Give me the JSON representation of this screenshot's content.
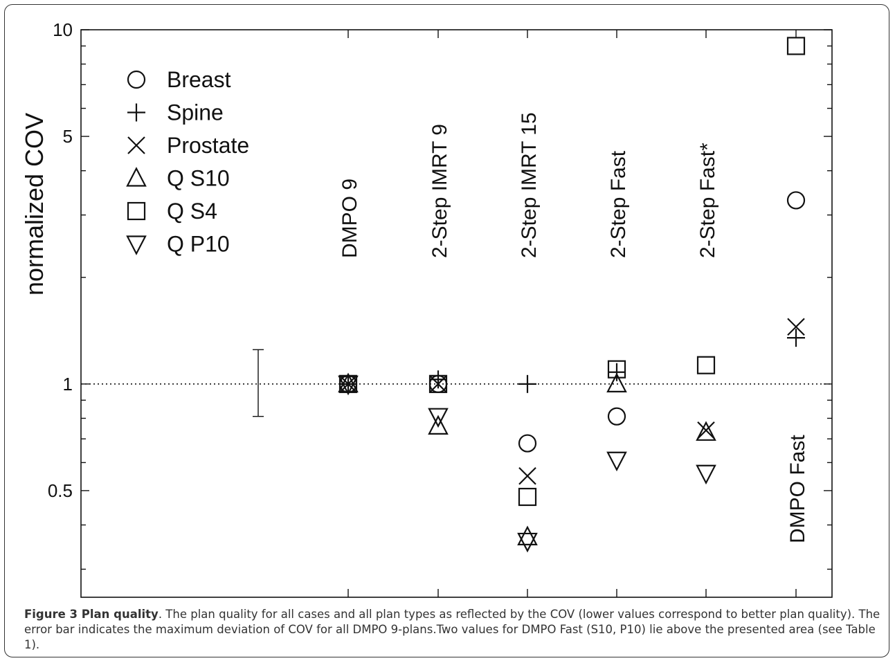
{
  "chart_data": {
    "type": "scatter",
    "title": "",
    "xlabel": "",
    "ylabel": "normalized COV",
    "yscale": "log",
    "ylim": [
      0.25,
      10
    ],
    "yticks_labeled": [
      {
        "value": 0.5,
        "label": "0.5"
      },
      {
        "value": 1,
        "label": "1"
      },
      {
        "value": 5,
        "label": "5"
      },
      {
        "value": 10,
        "label": "10"
      }
    ],
    "reference_line": {
      "y": 1,
      "style": "dotted"
    },
    "categories": [
      "DMPO 9",
      "2-Step IMRT 9",
      "2-Step IMRT 15",
      "2-Step Fast",
      "2-Step Fast*",
      "DMPO Fast"
    ],
    "category_label_position": [
      "top",
      "top",
      "top",
      "top",
      "top",
      "bottom"
    ],
    "legend": {
      "placement": "top-left",
      "entries": [
        {
          "marker": "circle",
          "label": "Breast"
        },
        {
          "marker": "plus",
          "label": "Spine"
        },
        {
          "marker": "cross",
          "label": "Prostate"
        },
        {
          "marker": "triangle-up",
          "label": "Q S10"
        },
        {
          "marker": "square",
          "label": "Q S4"
        },
        {
          "marker": "triangle-down",
          "label": "Q P10"
        }
      ]
    },
    "series": [
      {
        "name": "Breast",
        "marker": "circle",
        "values": [
          1.0,
          1.0,
          0.68,
          0.81,
          null,
          3.3
        ]
      },
      {
        "name": "Spine",
        "marker": "plus",
        "values": [
          1.0,
          1.03,
          1.0,
          1.08,
          null,
          1.35
        ]
      },
      {
        "name": "Prostate",
        "marker": "cross",
        "values": [
          1.0,
          1.0,
          0.55,
          null,
          0.74,
          1.45
        ]
      },
      {
        "name": "Q S10",
        "marker": "triangle-up",
        "values": [
          1.0,
          0.76,
          0.37,
          1.0,
          0.73,
          null
        ]
      },
      {
        "name": "Q S4",
        "marker": "square",
        "values": [
          1.0,
          1.0,
          0.48,
          1.1,
          1.13,
          9.0
        ]
      },
      {
        "name": "Q P10",
        "marker": "triangle-down",
        "values": [
          1.0,
          0.81,
          0.36,
          0.61,
          0.56,
          null
        ]
      }
    ],
    "error_bar": {
      "y_low": 0.81,
      "y_high": 1.25
    }
  },
  "caption": {
    "label": "Figure 3 Plan quality",
    "text": ". The plan quality for all cases and all plan types as reflected by the COV (lower values correspond to better plan quality). The error bar indicates the maximum deviation of COV for all DMPO 9-plans.Two values for DMPO Fast (S10, P10) lie above the presented area (see Table 1)."
  }
}
